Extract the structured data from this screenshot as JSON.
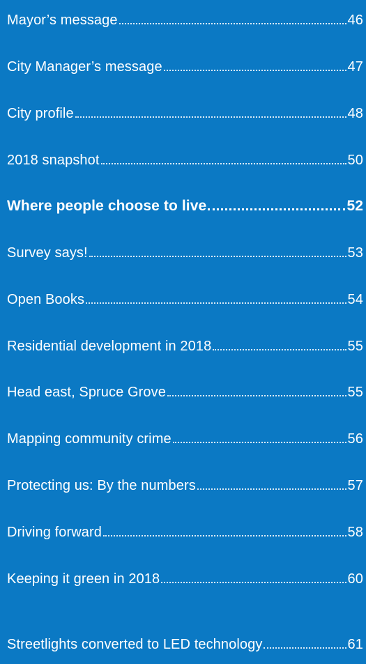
{
  "toc": {
    "items": [
      {
        "title": "Mayor’s message",
        "page": "46"
      },
      {
        "title": "City Manager’s message",
        "page": "47"
      },
      {
        "title": "City profile",
        "page": "48"
      },
      {
        "title": "2018 snapshot",
        "page": "50"
      },
      {
        "title": "Where people choose to live",
        "page": "52"
      },
      {
        "title": "Survey says!",
        "page": "53"
      },
      {
        "title": "Open Books",
        "page": "54"
      },
      {
        "title": "Residential development in 2018",
        "page": "55"
      },
      {
        "title": "Head east, Spruce Grove",
        "page": "55"
      },
      {
        "title": "Mapping community crime",
        "page": "56"
      },
      {
        "title": "Protecting us: By the numbers",
        "page": "57"
      },
      {
        "title": "Driving forward",
        "page": "58"
      },
      {
        "title": "Keeping it green in 2018",
        "page": "60"
      },
      {
        "title": "Streetlights converted to LED technology",
        "page": "61"
      }
    ]
  },
  "colors": {
    "background": "#0b79c4",
    "text": "#ffffff"
  }
}
